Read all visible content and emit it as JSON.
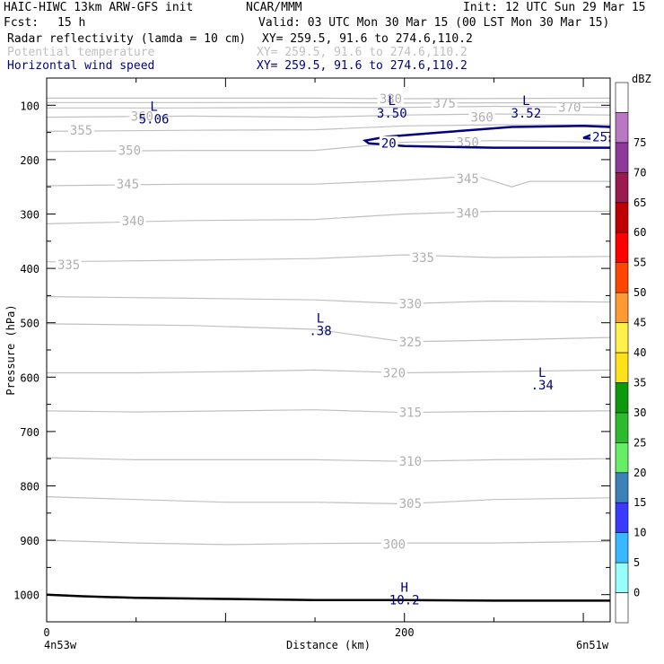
{
  "header": {
    "model": "HAIC-HIWC 13km ARW-GFS init",
    "org": "NCAR/MMM",
    "init": "Init: 12 UTC Sun 29 Mar 15",
    "fcst_label": "Fcst:",
    "fcst_value": "15 h",
    "valid": "Valid: 03 UTC Mon 30 Mar 15 (00 LST Mon 30 Mar 15)",
    "fields": [
      {
        "name": "Radar reflectivity (lamda = 10 cm)",
        "xy": "XY= 259.5, 91.6 to 274.6,110.2",
        "color": "#000000"
      },
      {
        "name": "Potential temperature",
        "xy": "XY= 259.5, 91.6 to 274.6,110.2",
        "color": "#c0c0c0"
      },
      {
        "name": "Horizontal wind speed",
        "xy": "XY= 259.5, 91.6 to 274.6,110.2",
        "color": "#000080"
      }
    ]
  },
  "chart_data": {
    "type": "contour",
    "xlabel": "Distance (km)",
    "ylabel": "Pressure (hPa)",
    "xlim": [
      0,
      315
    ],
    "ylim": [
      1050,
      50
    ],
    "x_ticks": [
      0,
      200
    ],
    "y_ticks": [
      100,
      200,
      300,
      400,
      500,
      600,
      700,
      800,
      900,
      1000
    ],
    "x_endpoint_labels": {
      "left": "4n53w",
      "right": "6n51w"
    },
    "colorbar": {
      "unit": "dBZ",
      "levels": [
        0,
        5,
        10,
        15,
        20,
        25,
        30,
        35,
        40,
        45,
        50,
        55,
        60,
        65,
        70,
        75
      ],
      "colors": [
        "#ffffff",
        "#96fff9",
        "#38b8ff",
        "#3a3aff",
        "#3c82b8",
        "#66ee66",
        "#2cbb2c",
        "#0c9a0c",
        "#ffe11a",
        "#fff04a",
        "#ff9932",
        "#ff4500",
        "#ff0000",
        "#be0000",
        "#9b1a50",
        "#8e3a9a",
        "#b878c2",
        "#ffffff"
      ]
    },
    "theta_contours": [
      {
        "label": "300",
        "points": [
          [
            0,
            900
          ],
          [
            50,
            905
          ],
          [
            100,
            908
          ],
          [
            150,
            906
          ],
          [
            200,
            905
          ],
          [
            250,
            905
          ],
          [
            315,
            902
          ]
        ],
        "labels_at": [
          [
            188,
            907
          ]
        ]
      },
      {
        "label": "305",
        "points": [
          [
            0,
            820
          ],
          [
            50,
            825
          ],
          [
            100,
            830
          ],
          [
            150,
            830
          ],
          [
            200,
            833
          ],
          [
            250,
            825
          ],
          [
            315,
            822
          ]
        ],
        "labels_at": [
          [
            197,
            832
          ]
        ]
      },
      {
        "label": "310",
        "points": [
          [
            0,
            748
          ],
          [
            50,
            752
          ],
          [
            100,
            752
          ],
          [
            150,
            752
          ],
          [
            200,
            755
          ],
          [
            250,
            752
          ],
          [
            315,
            750
          ]
        ],
        "labels_at": [
          [
            197,
            755
          ]
        ]
      },
      {
        "label": "315",
        "points": [
          [
            0,
            662
          ],
          [
            50,
            664
          ],
          [
            100,
            662
          ],
          [
            150,
            660
          ],
          [
            200,
            665
          ],
          [
            250,
            663
          ],
          [
            315,
            662
          ]
        ],
        "labels_at": [
          [
            197,
            665
          ]
        ]
      },
      {
        "label": "320",
        "points": [
          [
            0,
            592
          ],
          [
            50,
            592
          ],
          [
            100,
            590
          ],
          [
            150,
            587
          ],
          [
            200,
            592
          ],
          [
            250,
            590
          ],
          [
            315,
            587
          ]
        ],
        "labels_at": [
          [
            188,
            592
          ]
        ]
      },
      {
        "label": "325",
        "points": [
          [
            0,
            502
          ],
          [
            80,
            505
          ],
          [
            150,
            512
          ],
          [
            200,
            535
          ],
          [
            250,
            532
          ],
          [
            315,
            527
          ]
        ],
        "labels_at": [
          [
            197,
            535
          ]
        ]
      },
      {
        "label": "330",
        "points": [
          [
            0,
            452
          ],
          [
            80,
            455
          ],
          [
            150,
            458
          ],
          [
            200,
            465
          ],
          [
            250,
            460
          ],
          [
            315,
            462
          ]
        ],
        "labels_at": [
          [
            197,
            465
          ]
        ]
      },
      {
        "label": "335",
        "points": [
          [
            0,
            388
          ],
          [
            80,
            385
          ],
          [
            150,
            382
          ],
          [
            200,
            375
          ],
          [
            250,
            380
          ],
          [
            315,
            378
          ]
        ],
        "labels_at": [
          [
            6,
            393
          ],
          [
            204,
            380
          ]
        ]
      },
      {
        "label": "340",
        "points": [
          [
            0,
            318
          ],
          [
            80,
            312
          ],
          [
            150,
            310
          ],
          [
            200,
            300
          ],
          [
            250,
            295
          ],
          [
            315,
            295
          ]
        ],
        "labels_at": [
          [
            42,
            312
          ],
          [
            229,
            298
          ]
        ]
      },
      {
        "label": "345",
        "points": [
          [
            0,
            248
          ],
          [
            80,
            245
          ],
          [
            150,
            245
          ],
          [
            200,
            238
          ],
          [
            240,
            230
          ],
          [
            260,
            250
          ],
          [
            270,
            240
          ],
          [
            315,
            240
          ]
        ],
        "labels_at": [
          [
            39,
            245
          ],
          [
            229,
            235
          ]
        ]
      },
      {
        "label": "350",
        "points": [
          [
            0,
            185
          ],
          [
            80,
            183
          ],
          [
            150,
            183
          ],
          [
            200,
            168
          ],
          [
            250,
            165
          ],
          [
            315,
            168
          ]
        ],
        "labels_at": [
          [
            40,
            183
          ],
          [
            229,
            168
          ]
        ]
      },
      {
        "label": "355",
        "points": [
          [
            0,
            148
          ],
          [
            80,
            146
          ],
          [
            150,
            145
          ],
          [
            200,
            138
          ],
          [
            250,
            136
          ],
          [
            315,
            136
          ]
        ],
        "labels_at": [
          [
            13,
            146
          ]
        ]
      },
      {
        "label": "360",
        "points": [
          [
            0,
            122
          ],
          [
            80,
            120
          ],
          [
            150,
            122
          ],
          [
            200,
            118
          ],
          [
            250,
            116
          ],
          [
            315,
            118
          ]
        ],
        "labels_at": [
          [
            47,
            120
          ],
          [
            237,
            122
          ]
        ]
      },
      {
        "label": "370",
        "points": [
          [
            0,
            105
          ],
          [
            80,
            105
          ],
          [
            150,
            104
          ],
          [
            200,
            104
          ],
          [
            250,
            102
          ],
          [
            315,
            104
          ]
        ],
        "labels_at": [
          [
            286,
            104
          ]
        ]
      },
      {
        "label": "375",
        "points": [
          [
            0,
            95
          ],
          [
            150,
            95
          ],
          [
            200,
            96
          ],
          [
            315,
            95
          ]
        ],
        "labels_at": [
          [
            216,
            96
          ]
        ]
      },
      {
        "label": "380",
        "points": [
          [
            0,
            87
          ],
          [
            150,
            87
          ],
          [
            200,
            88
          ],
          [
            315,
            87
          ]
        ],
        "labels_at": [
          [
            186,
            88
          ]
        ]
      }
    ],
    "wind_contours": [
      {
        "label": "20",
        "points": [
          [
            315,
            140
          ],
          [
            300,
            138
          ],
          [
            260,
            140
          ],
          [
            220,
            150
          ],
          [
            190,
            158
          ],
          [
            178,
            165
          ],
          [
            180,
            170
          ],
          [
            200,
            175
          ],
          [
            250,
            178
          ],
          [
            315,
            178
          ]
        ],
        "labels_at": [
          [
            187,
            170
          ]
        ]
      },
      {
        "label": "25",
        "points": [
          [
            315,
            158
          ],
          [
            304,
            155
          ],
          [
            300,
            160
          ],
          [
            315,
            165
          ]
        ],
        "labels_at": [
          [
            305,
            158
          ]
        ]
      }
    ],
    "surface": [
      [
        0,
        1000
      ],
      [
        20,
        1003
      ],
      [
        50,
        1006
      ],
      [
        100,
        1008
      ],
      [
        150,
        1010
      ],
      [
        200,
        1010
      ],
      [
        250,
        1011
      ],
      [
        315,
        1011
      ]
    ],
    "markers": [
      {
        "type": "L",
        "value": "5.06",
        "x": 60,
        "y": 100,
        "color": "#000080"
      },
      {
        "type": "L",
        "value": "3.50",
        "x": 193,
        "y": 90,
        "color": "#000080"
      },
      {
        "type": "L",
        "value": "3.52",
        "x": 268,
        "y": 90,
        "color": "#000080"
      },
      {
        "type": "L",
        "value": ".38",
        "x": 153,
        "y": 490,
        "color": "#000080"
      },
      {
        "type": "L",
        "value": ".34",
        "x": 277,
        "y": 590,
        "color": "#000080"
      },
      {
        "type": "H",
        "value": "10.2",
        "x": 200,
        "y": 985,
        "color": "#000080"
      }
    ]
  }
}
